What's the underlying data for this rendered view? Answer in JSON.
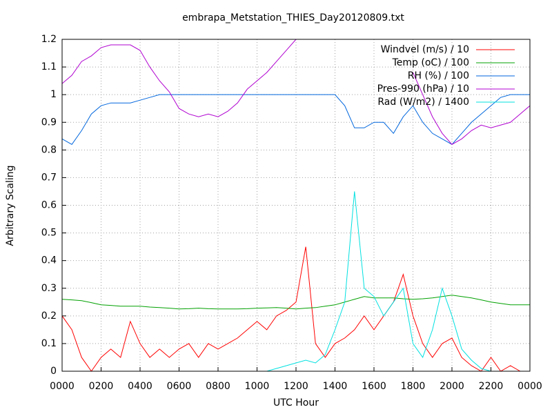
{
  "chart_data": {
    "type": "line",
    "title": "embrapa_Metstation_THIES_Day20120809.txt",
    "x_label": "UTC Hour",
    "y_label": "Arbitrary Scaling",
    "grid": true,
    "legend": "top-right",
    "xlim": [
      0,
      24
    ],
    "ylim": [
      0,
      1.2
    ],
    "xticks": [
      {
        "value": 0,
        "label": "0000"
      },
      {
        "value": 2,
        "label": "0200"
      },
      {
        "value": 4,
        "label": "0400"
      },
      {
        "value": 6,
        "label": "0600"
      },
      {
        "value": 8,
        "label": "0800"
      },
      {
        "value": 10,
        "label": "1000"
      },
      {
        "value": 12,
        "label": "1200"
      },
      {
        "value": 14,
        "label": "1400"
      },
      {
        "value": 16,
        "label": "1600"
      },
      {
        "value": 18,
        "label": "1800"
      },
      {
        "value": 20,
        "label": "2000"
      },
      {
        "value": 22,
        "label": "2200"
      },
      {
        "value": 24,
        "label": "0000"
      }
    ],
    "yticks": [
      0,
      0.1,
      0.2,
      0.3,
      0.4,
      0.5,
      0.6,
      0.7,
      0.8,
      0.9,
      1,
      1.1,
      1.2
    ],
    "x": [
      0,
      0.5,
      1,
      1.5,
      2,
      2.5,
      3,
      3.5,
      4,
      4.5,
      5,
      5.5,
      6,
      6.5,
      7,
      7.5,
      8,
      8.5,
      9,
      9.5,
      10,
      10.5,
      11,
      11.5,
      12,
      12.5,
      13,
      13.5,
      14,
      14.5,
      15,
      15.5,
      16,
      16.5,
      17,
      17.5,
      18,
      18.5,
      19,
      19.5,
      20,
      20.5,
      21,
      21.5,
      22,
      22.5,
      23,
      23.5,
      24
    ],
    "series": [
      {
        "name": "Windvel (m/s) / 10",
        "color": "#ff0000",
        "values": [
          0.2,
          0.15,
          0.05,
          0,
          0.05,
          0.08,
          0.05,
          0.18,
          0.1,
          0.05,
          0.08,
          0.05,
          0.08,
          0.1,
          0.05,
          0.1,
          0.08,
          0.1,
          0.12,
          0.15,
          0.18,
          0.15,
          0.2,
          0.22,
          0.25,
          0.45,
          0.1,
          0.05,
          0.1,
          0.12,
          0.15,
          0.2,
          0.15,
          0.2,
          0.25,
          0.35,
          0.2,
          0.1,
          0.05,
          0.1,
          0.12,
          0.05,
          0.02,
          0,
          0.05,
          0,
          0.02,
          0,
          0
        ]
      },
      {
        "name": "Temp (oC) / 100",
        "color": "#00a000",
        "values": [
          0.26,
          0.258,
          0.255,
          0.248,
          0.24,
          0.238,
          0.235,
          0.235,
          0.235,
          0.232,
          0.23,
          0.228,
          0.225,
          0.226,
          0.228,
          0.226,
          0.225,
          0.225,
          0.225,
          0.226,
          0.228,
          0.229,
          0.23,
          0.228,
          0.225,
          0.228,
          0.23,
          0.235,
          0.24,
          0.25,
          0.26,
          0.27,
          0.265,
          0.265,
          0.265,
          0.262,
          0.26,
          0.262,
          0.265,
          0.27,
          0.275,
          0.27,
          0.265,
          0.258,
          0.25,
          0.245,
          0.24,
          0.24,
          0.24
        ]
      },
      {
        "name": "RH (%) / 100",
        "color": "#0066dd",
        "values": [
          0.84,
          0.82,
          0.87,
          0.93,
          0.96,
          0.97,
          0.97,
          0.97,
          0.98,
          0.99,
          1,
          1,
          1,
          1,
          1,
          1,
          1,
          1,
          1,
          1,
          1,
          1,
          1,
          1,
          1,
          1,
          1,
          1,
          1,
          0.96,
          0.88,
          0.88,
          0.9,
          0.9,
          0.86,
          0.92,
          0.96,
          0.9,
          0.86,
          0.84,
          0.82,
          0.86,
          0.9,
          0.93,
          0.96,
          0.99,
          1,
          1,
          1
        ]
      },
      {
        "name": "Pres-990 (hPa) / 10",
        "color": "#b000d0",
        "values": [
          1.04,
          1.07,
          1.12,
          1.14,
          1.17,
          1.18,
          1.18,
          1.18,
          1.16,
          1.1,
          1.05,
          1.01,
          0.95,
          0.93,
          0.92,
          0.93,
          0.92,
          0.94,
          0.97,
          1.02,
          1.05,
          1.08,
          1.12,
          1.16,
          1.2,
          null,
          null,
          null,
          null,
          null,
          null,
          null,
          null,
          null,
          null,
          null,
          1.08,
          1,
          0.92,
          0.86,
          0.82,
          0.84,
          0.87,
          0.89,
          0.88,
          0.89,
          0.9,
          0.93,
          0.96
        ]
      },
      {
        "name": "Rad (W/m2) / 1400",
        "color": "#00e0e0",
        "values": [
          null,
          null,
          null,
          null,
          null,
          null,
          null,
          null,
          null,
          null,
          null,
          null,
          null,
          null,
          null,
          null,
          null,
          null,
          null,
          null,
          null,
          0,
          0.01,
          0.02,
          0.03,
          0.04,
          0.03,
          0.06,
          0.15,
          0.25,
          0.65,
          0.3,
          0.27,
          0.2,
          0.25,
          0.3,
          0.1,
          0.05,
          0.15,
          0.3,
          0.2,
          0.08,
          0.04,
          0.01,
          0,
          null,
          null,
          null,
          null
        ]
      }
    ]
  }
}
